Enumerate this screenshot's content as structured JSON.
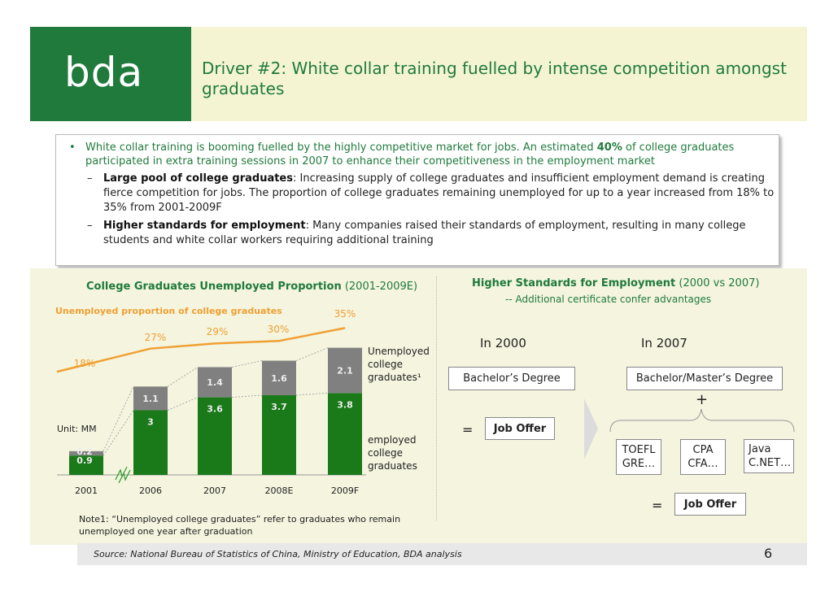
{
  "header": {
    "logo": "bda",
    "title": "Driver #2: White collar training fuelled by intense competition amongst graduates"
  },
  "bullets": {
    "main_pre": "White collar training is booming fuelled by the highly competitive market for jobs.  An estimated ",
    "main_bold": "40%",
    "main_post": " of college graduates participated in extra training sessions in 2007 to enhance their competitiveness in the employment market",
    "sub1_bold": "Large pool of college graduates",
    "sub1_text": ": Increasing supply of college graduates and insufficient employment demand is creating fierce competition for jobs. The proportion of college graduates remaining unemployed for up to a year increased from 18% to 35% from 2001-2009F",
    "sub2_bold": "Higher standards for employment",
    "sub2_text": ": Many companies raised their standards of employment, resulting in many college students and white collar workers requiring additional training"
  },
  "left_chart": {
    "title_bold": "College Graduates Unemployed Proportion",
    "title_rest": " (2001-2009E)",
    "subtitle": "Unemployed proportion of college graduates",
    "unit": "Unit: MM",
    "legend_unemployed": [
      "Unemployed",
      "college",
      "graduates¹"
    ],
    "legend_employed": [
      "employed",
      "college",
      "graduates"
    ],
    "note": "Note1: “Unemployed college graduates” refer to graduates who remain unemployed one year after graduation"
  },
  "chart_data": {
    "type": "bar",
    "stacked": true,
    "categories": [
      "2001",
      "2006",
      "2007",
      "2008E",
      "2009F"
    ],
    "series": [
      {
        "name": "employed college graduates",
        "values": [
          0.9,
          3.0,
          3.6,
          3.7,
          3.8
        ],
        "color": "#1a7a1a"
      },
      {
        "name": "Unemployed college graduates¹",
        "values": [
          0.2,
          1.1,
          1.4,
          1.6,
          2.1
        ],
        "color": "#808080"
      }
    ],
    "line": {
      "name": "Unemployed proportion of college graduates",
      "values": [
        18,
        27,
        29,
        30,
        35
      ],
      "labels": [
        "18%",
        "27%",
        "29%",
        "30%",
        "35%"
      ],
      "color": "#f0a032"
    },
    "axis_break_between": [
      "2001",
      "2006"
    ]
  },
  "right_panel": {
    "title_bold": "Higher Standards for Employment",
    "title_rest": " (2000 vs 2007)",
    "subtitle": "-- Additional certificate confer advantages",
    "year_2000": "In 2000",
    "year_2007": "In 2007",
    "degree_2000": "Bachelor’s Degree",
    "degree_2007": "Bachelor/Master’s Degree",
    "equals": "=",
    "plus": "+",
    "job_offer": "Job Offer",
    "certs": [
      [
        "TOEFL",
        "GRE…"
      ],
      [
        "CPA",
        "CFA…"
      ],
      [
        "Java",
        "C.NET…"
      ]
    ]
  },
  "footer": {
    "source": "Source: National Bureau of Statistics of China, Ministry of Education, BDA analysis",
    "page": "6"
  }
}
